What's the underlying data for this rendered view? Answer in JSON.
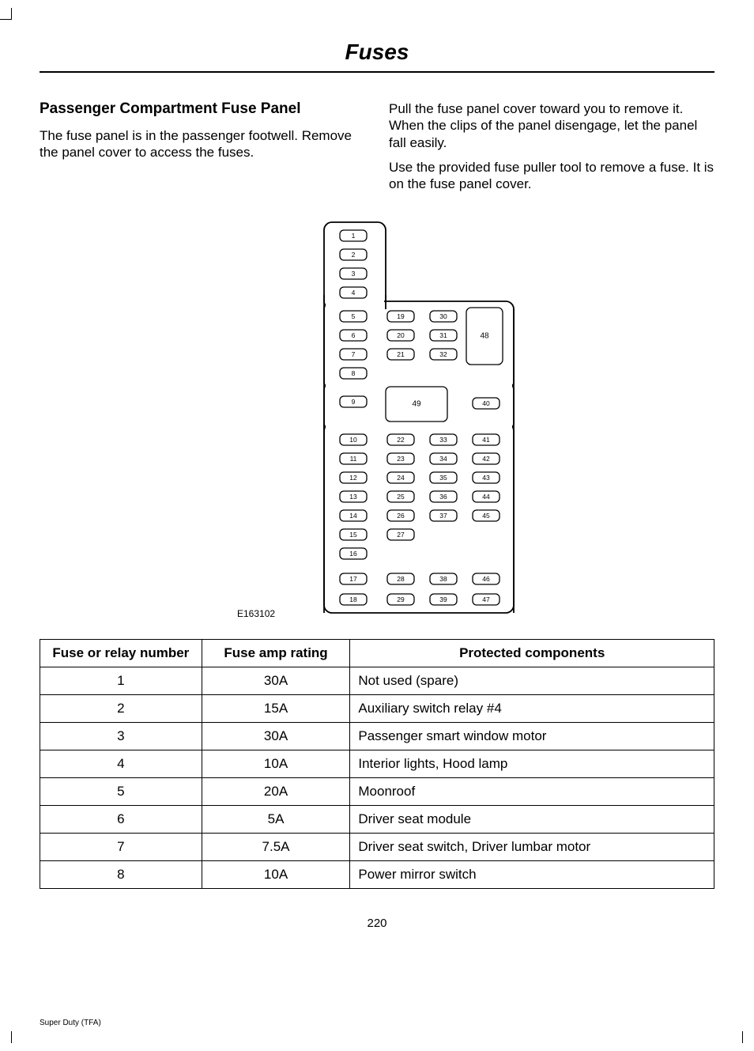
{
  "page": {
    "title": "Fuses",
    "number": "220",
    "footer": "Super Duty (TFA)"
  },
  "heading": "Passenger Compartment Fuse Panel",
  "para1": "The fuse panel is in the passenger footwell. Remove the panel cover to access the fuses.",
  "para2": "Pull the fuse panel cover toward you to remove it. When the clips of the panel disengage, let the panel fall easily.",
  "para3": "Use the provided fuse puller tool to remove a fuse. It is on the fuse panel cover.",
  "diagram": {
    "label": "E163102",
    "stroke_color": "#000000",
    "stroke_width": 1.5,
    "background": "#ffffff",
    "fuse_slot": {
      "width": 34,
      "height": 14,
      "rx": 5,
      "label_fontsize": 8.5
    },
    "outline_rx": 10,
    "slots_col1": [
      "1",
      "2",
      "3",
      "4",
      "5",
      "6",
      "7",
      "8",
      "9",
      "10",
      "11",
      "12",
      "13",
      "14",
      "15",
      "16",
      "17",
      "18"
    ],
    "slots_col2a": [
      "19",
      "20",
      "21"
    ],
    "slots_col3a": [
      "30",
      "31",
      "32"
    ],
    "slot_40": "40",
    "slots_col2b": [
      "22",
      "23",
      "24",
      "25",
      "26",
      "27",
      "28",
      "29"
    ],
    "slots_col3b": [
      "33",
      "34",
      "35",
      "36",
      "37",
      "38",
      "39"
    ],
    "slots_col4b": [
      "41",
      "42",
      "43",
      "44",
      "45",
      "46",
      "47"
    ],
    "big_48": "48",
    "big_49": "49"
  },
  "table": {
    "headers": [
      "Fuse or relay number",
      "Fuse amp rating",
      "Protected components"
    ],
    "rows": [
      [
        "1",
        "30A",
        "Not used (spare)"
      ],
      [
        "2",
        "15A",
        "Auxiliary switch relay #4"
      ],
      [
        "3",
        "30A",
        "Passenger smart window motor"
      ],
      [
        "4",
        "10A",
        "Interior lights, Hood lamp"
      ],
      [
        "5",
        "20A",
        "Moonroof"
      ],
      [
        "6",
        "5A",
        "Driver seat module"
      ],
      [
        "7",
        "7.5A",
        "Driver seat switch, Driver lumbar motor"
      ],
      [
        "8",
        "10A",
        "Power mirror switch"
      ]
    ]
  }
}
